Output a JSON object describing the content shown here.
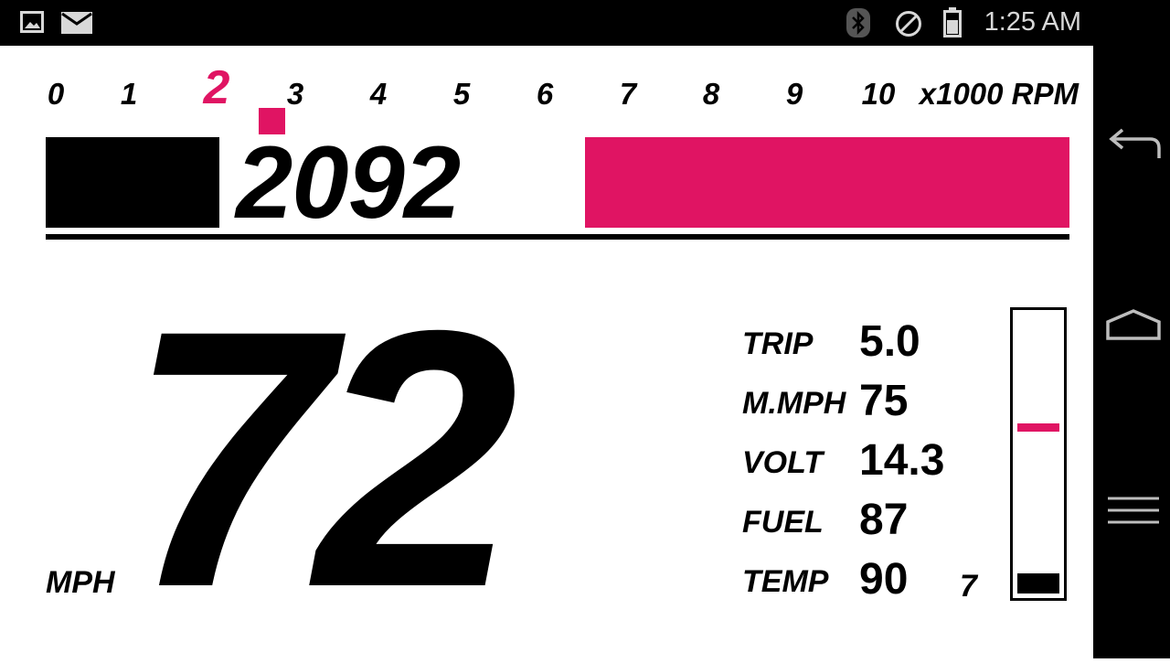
{
  "status_bar": {
    "time": "1:25 AM",
    "icons": [
      "image-icon",
      "email-icon",
      "bluetooth-icon",
      "do-not-disturb-icon",
      "battery-icon"
    ]
  },
  "nav_bar": {
    "buttons": [
      "back-icon",
      "home-icon",
      "menu-icon"
    ]
  },
  "rpm": {
    "scale": [
      "0",
      "1",
      "2",
      "3",
      "4",
      "5",
      "6",
      "7",
      "8",
      "9",
      "10"
    ],
    "unit": "x1000 RPM",
    "value": "2092",
    "active_tick": "2"
  },
  "speed": {
    "value": "72",
    "unit": "MPH"
  },
  "stats": [
    {
      "label": "TRIP",
      "value": "5.0"
    },
    {
      "label": "M.MPH",
      "value": "75"
    },
    {
      "label": "VOLT",
      "value": "14.3"
    },
    {
      "label": "FUEL",
      "value": "87"
    },
    {
      "label": "TEMP",
      "value": "90"
    }
  ],
  "gear": "7",
  "colors": {
    "accent": "#e01463",
    "foreground": "#000000",
    "background": "#ffffff"
  }
}
